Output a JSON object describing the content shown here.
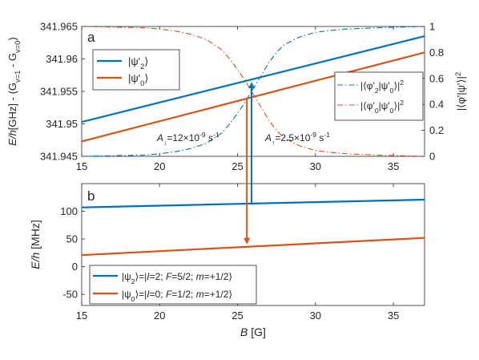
{
  "chart_data": [
    {
      "panel_letter": "a",
      "type": "line",
      "xlim": [
        15,
        37
      ],
      "ylim": [
        341.945,
        341.965
      ],
      "y2lim": [
        0,
        1
      ],
      "xticks": [
        "15",
        "20",
        "25",
        "30",
        "35"
      ],
      "yticks": [
        "341.945",
        "341.95",
        "341.955",
        "341.96",
        "341.965"
      ],
      "y2ticks": [
        "0",
        "0.2",
        "0.4",
        "0.6",
        "0.8",
        "1"
      ],
      "ylabel_parts": [
        "E/h",
        "[GHz] - (G",
        "v=1",
        " - G",
        "v=0",
        ")"
      ],
      "y2label_parts": [
        "|⟨φ'|ψ'⟩|",
        "2"
      ],
      "series": [
        {
          "name_parts": [
            "|ψ'",
            "2",
            "⟩"
          ],
          "color": "#0072BD",
          "style": "solid",
          "axis": "left",
          "x": [
            15,
            37
          ],
          "y": [
            341.9503,
            341.9635
          ]
        },
        {
          "name_parts": [
            "|ψ'",
            "0",
            "⟩"
          ],
          "color": "#D95319",
          "style": "solid",
          "axis": "left",
          "x": [
            15,
            37
          ],
          "y": [
            341.9473,
            341.961
          ]
        },
        {
          "name_parts": [
            "|⟨φ'",
            "2",
            "|ψ'",
            "0",
            "⟩|",
            "2"
          ],
          "color": "#0072BD",
          "style": "dashdot",
          "axis": "right",
          "x": [
            15,
            17,
            19,
            20,
            21,
            22,
            23,
            24,
            24.5,
            25,
            25.5,
            25.8,
            26,
            26.5,
            27,
            27.5,
            28,
            29,
            30,
            31,
            32,
            34,
            37
          ],
          "y": [
            0.0,
            0.005,
            0.01,
            0.02,
            0.035,
            0.06,
            0.1,
            0.18,
            0.25,
            0.33,
            0.42,
            0.48,
            0.52,
            0.62,
            0.72,
            0.8,
            0.86,
            0.92,
            0.955,
            0.97,
            0.98,
            0.99,
            1.0
          ]
        },
        {
          "name_parts": [
            "|⟨φ'",
            "0",
            "|ψ'",
            "0",
            "⟩|",
            "2"
          ],
          "color": "#D95319",
          "style": "dashdot",
          "axis": "right",
          "x": [
            15,
            17,
            19,
            20,
            21,
            22,
            23,
            24,
            24.5,
            25,
            25.5,
            25.8,
            26,
            26.5,
            27,
            27.5,
            28,
            29,
            30,
            31,
            32,
            34,
            37
          ],
          "y": [
            1.0,
            0.995,
            0.99,
            0.98,
            0.965,
            0.94,
            0.9,
            0.82,
            0.75,
            0.67,
            0.58,
            0.52,
            0.48,
            0.38,
            0.28,
            0.2,
            0.14,
            0.08,
            0.045,
            0.03,
            0.02,
            0.01,
            0.0
          ]
        }
      ],
      "annotations": [
        {
          "parts": [
            "A",
            "↓",
            "=12×10",
            "-9",
            " s",
            "-1"
          ],
          "color": "#D95319"
        },
        {
          "parts": [
            "A",
            "↑",
            "=2.5×10",
            "-9",
            " s",
            "-1"
          ],
          "color": "#0072BD"
        }
      ],
      "grid": false,
      "legend_left_position": "upper-left",
      "legend_right_position": "center-right"
    },
    {
      "panel_letter": "b",
      "type": "line",
      "xlim": [
        15,
        37
      ],
      "ylim": [
        -70,
        150
      ],
      "xticks": [
        "15",
        "20",
        "25",
        "30",
        "35"
      ],
      "yticks": [
        "-50",
        "0",
        "50",
        "100"
      ],
      "xlabel_parts": [
        "B",
        " [G]"
      ],
      "ylabel_parts": [
        "E/h",
        " [MHz]"
      ],
      "series": [
        {
          "name_parts": [
            "|ψ",
            "2",
            "⟩=|",
            "I",
            "=2; ",
            "F",
            "=5/2; ",
            "m",
            "=+1/2⟩"
          ],
          "color": "#0072BD",
          "style": "solid",
          "x": [
            15,
            37
          ],
          "y": [
            107,
            121
          ]
        },
        {
          "name_parts": [
            "|ψ",
            "0",
            "⟩=|",
            "I",
            "=0; ",
            "F",
            "=1/2; ",
            "m",
            "=+1/2⟩"
          ],
          "color": "#D95319",
          "style": "solid",
          "x": [
            15,
            37
          ],
          "y": [
            21,
            52
          ]
        }
      ],
      "grid": false,
      "legend_position": "lower-center"
    }
  ],
  "transitions": [
    {
      "x": 25.9,
      "from_panel": "b",
      "to_panel": "a",
      "color": "#0072BD",
      "direction": "up"
    },
    {
      "x": 25.6,
      "from_panel": "a",
      "to_panel": "b",
      "color": "#D95319",
      "direction": "down"
    }
  ]
}
